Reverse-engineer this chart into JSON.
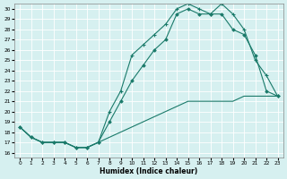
{
  "xlabel": "Humidex (Indice chaleur)",
  "bg_color": "#d6f0f0",
  "line_color": "#1a7a6a",
  "grid_color": "#ffffff",
  "xlim": [
    -0.5,
    23.5
  ],
  "ylim": [
    15.5,
    30.5
  ],
  "yticks": [
    16,
    17,
    18,
    19,
    20,
    21,
    22,
    23,
    24,
    25,
    26,
    27,
    28,
    29,
    30
  ],
  "xticks": [
    0,
    1,
    2,
    3,
    4,
    5,
    6,
    7,
    8,
    9,
    10,
    11,
    12,
    13,
    14,
    15,
    16,
    17,
    18,
    19,
    20,
    21,
    22,
    23
  ],
  "line1_x": [
    0,
    1,
    2,
    3,
    4,
    5,
    6,
    7,
    8,
    9,
    10,
    11,
    12,
    13,
    14,
    15,
    16,
    17,
    18,
    19,
    20,
    21,
    22,
    23
  ],
  "line1_y": [
    18.5,
    17.5,
    17.0,
    17.0,
    17.0,
    16.5,
    16.5,
    17.0,
    19.0,
    21.0,
    23.0,
    24.5,
    26.0,
    27.0,
    29.5,
    30.0,
    29.5,
    29.5,
    29.5,
    28.0,
    27.5,
    25.5,
    22.0,
    21.5
  ],
  "line2_x": [
    0,
    1,
    2,
    3,
    4,
    5,
    6,
    7,
    8,
    9,
    10,
    11,
    12,
    13,
    14,
    15,
    16,
    17,
    18,
    19,
    20,
    21,
    22,
    23
  ],
  "line2_y": [
    18.5,
    17.5,
    17.0,
    17.0,
    17.0,
    16.5,
    16.5,
    17.0,
    20.0,
    22.0,
    25.5,
    26.5,
    27.5,
    28.5,
    30.0,
    30.5,
    30.0,
    29.5,
    30.5,
    29.5,
    28.0,
    25.0,
    23.5,
    21.5
  ],
  "line3_x": [
    0,
    1,
    2,
    3,
    4,
    5,
    6,
    7,
    8,
    9,
    10,
    11,
    12,
    13,
    14,
    15,
    16,
    17,
    18,
    19,
    20,
    21,
    22,
    23
  ],
  "line3_y": [
    18.5,
    17.5,
    17.0,
    17.0,
    17.0,
    16.5,
    16.5,
    17.0,
    17.5,
    18.0,
    18.5,
    19.0,
    19.5,
    20.0,
    20.5,
    21.0,
    21.0,
    21.0,
    21.0,
    21.0,
    21.5,
    21.5,
    21.5,
    21.5
  ]
}
